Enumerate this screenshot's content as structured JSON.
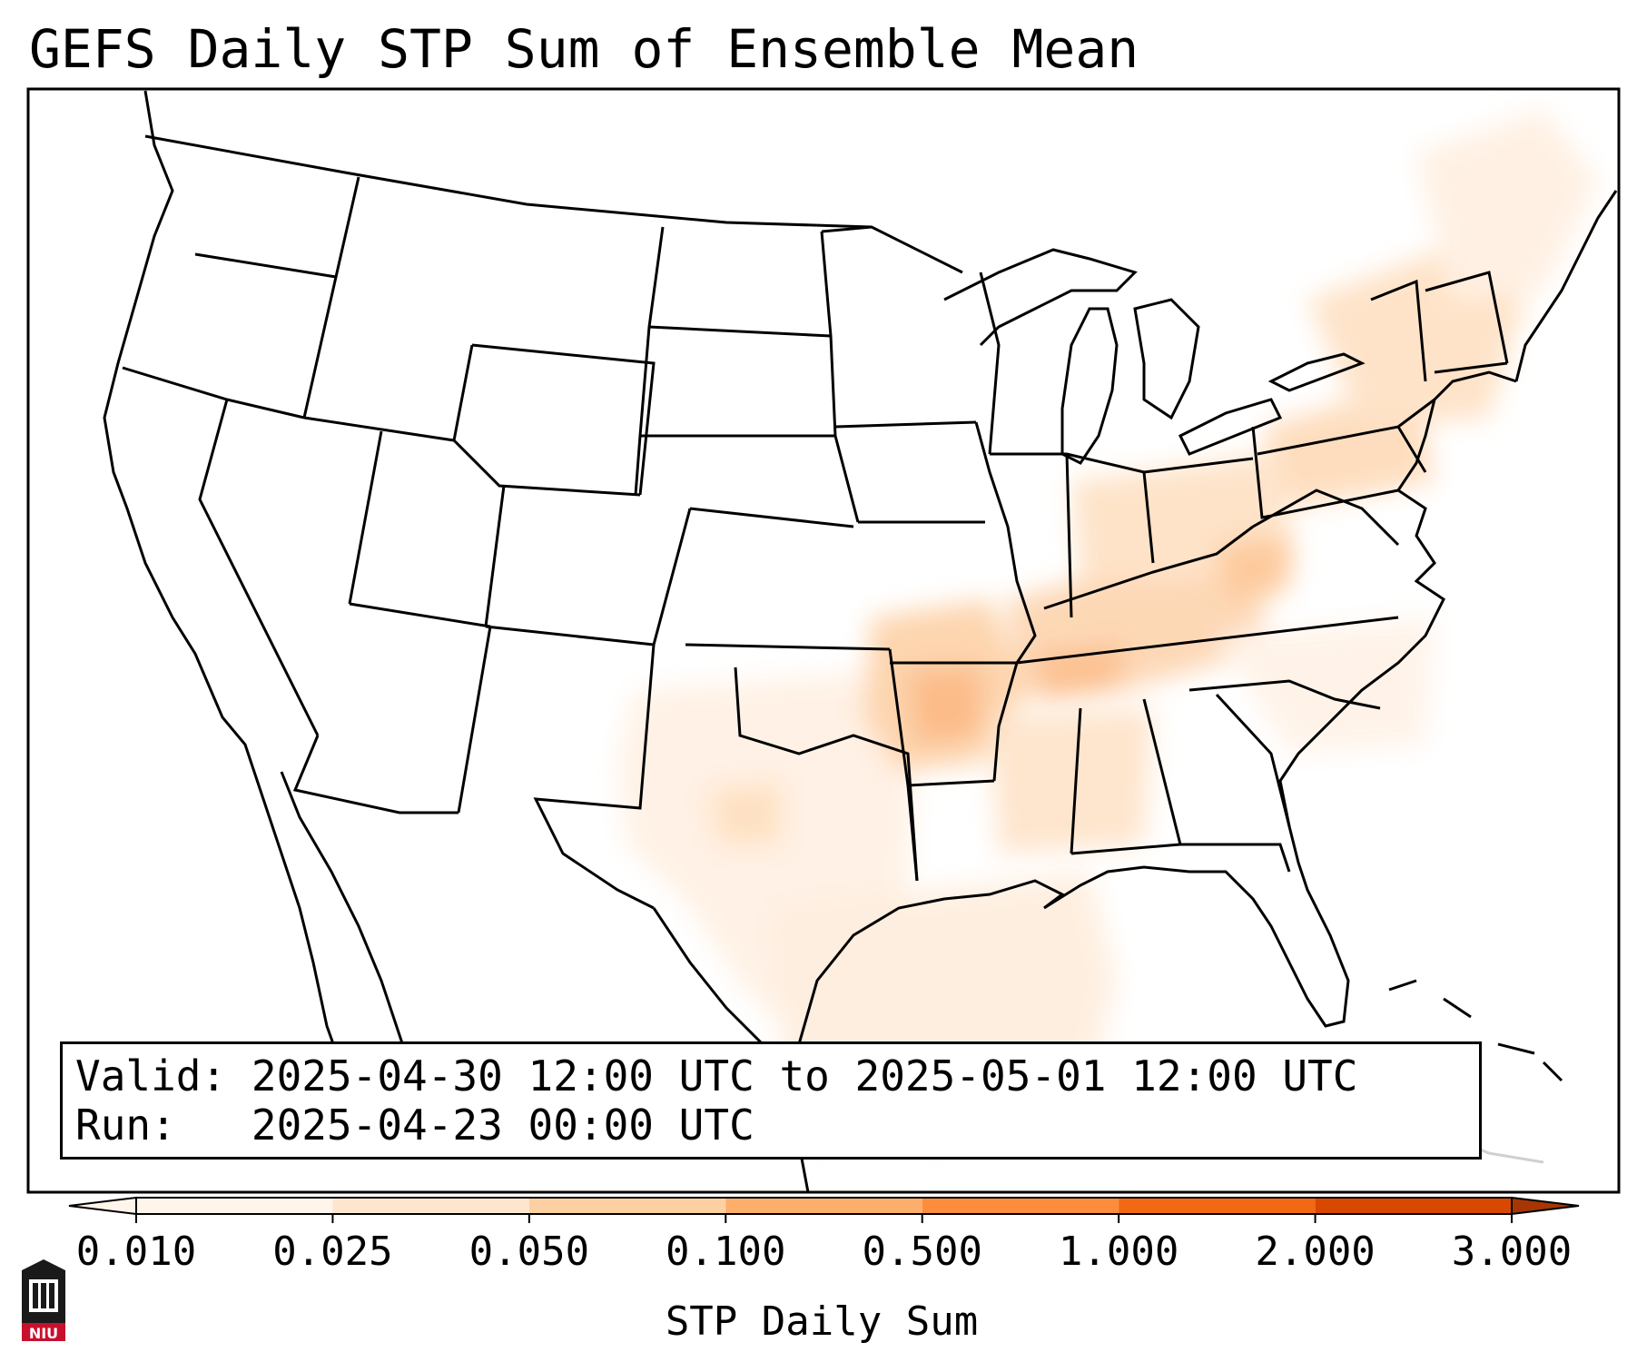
{
  "title": "GEFS Daily STP Sum of Ensemble Mean",
  "info": {
    "valid_label": "Valid:",
    "valid_value": "2025-04-30 12:00 UTC to 2025-05-01 12:00 UTC",
    "run_label": "Run:",
    "run_value": "2025-04-23 00:00 UTC"
  },
  "colorbar": {
    "label": "STP Daily Sum",
    "ticks": [
      "0.010",
      "0.025",
      "0.050",
      "0.100",
      "0.500",
      "1.000",
      "2.000",
      "3.000"
    ],
    "colors": [
      "#fff5eb",
      "#fee6ce",
      "#fdd0a2",
      "#fdae6b",
      "#fd8d3c",
      "#f16913",
      "#d94801",
      "#a63603"
    ],
    "extend": "both"
  },
  "logo": {
    "text": "NIU",
    "name": "niu-logo"
  },
  "map": {
    "region": "Contiguous United States",
    "projection": "Lambert Conformal",
    "shaded_regions": [
      {
        "area": "Southern Plains / Texas",
        "level": "0.010-0.025"
      },
      {
        "area": "Oklahoma / Arkansas",
        "level": "0.050-0.100"
      },
      {
        "area": "Tennessee / Kentucky",
        "level": "0.050-0.100"
      },
      {
        "area": "Ohio Valley / Pennsylvania",
        "level": "0.025-0.050"
      },
      {
        "area": "Northeast / New England",
        "level": "0.010-0.050"
      },
      {
        "area": "Gulf of Mexico",
        "level": "0.010-0.025"
      }
    ]
  }
}
